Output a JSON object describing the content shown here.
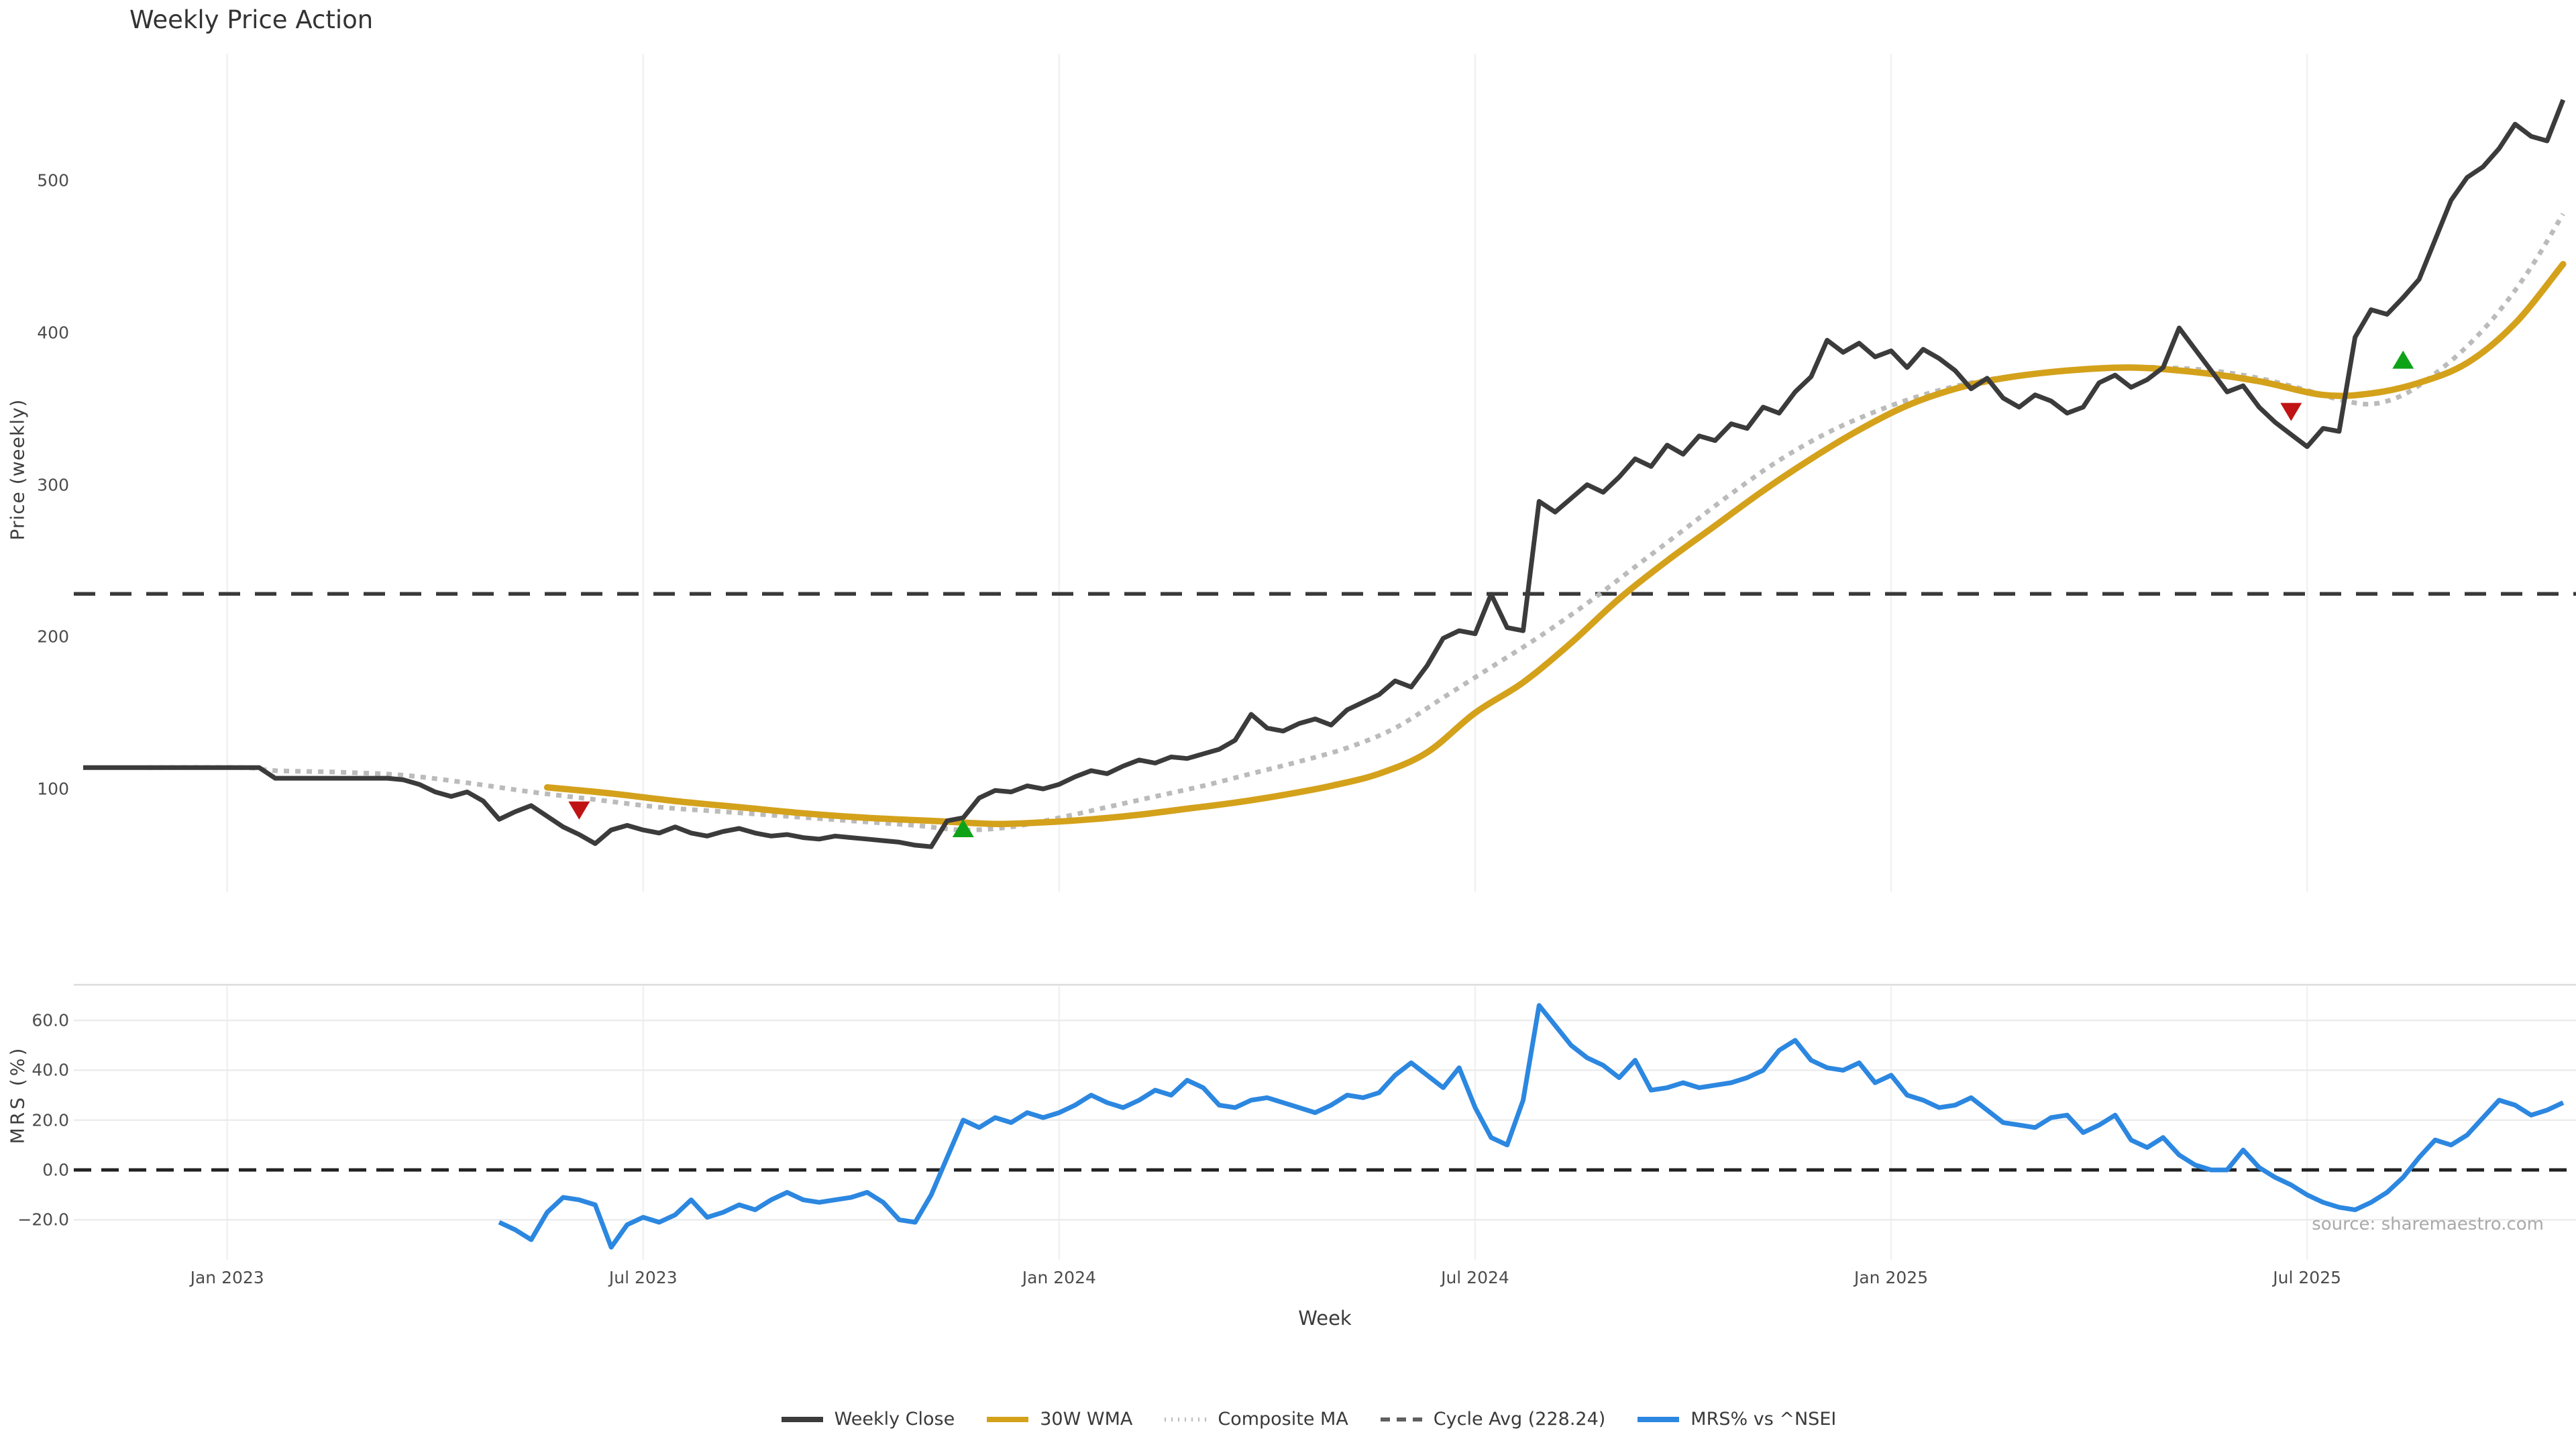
{
  "title": "Weekly Price Action",
  "source_note": "source: sharemaestro.com",
  "axes": {
    "price": {
      "label": "Price (weekly)",
      "ticks": [
        {
          "value": 100,
          "label": "100"
        },
        {
          "value": 200,
          "label": "200"
        },
        {
          "value": 300,
          "label": "300"
        },
        {
          "value": 400,
          "label": "400"
        },
        {
          "value": 500,
          "label": "500"
        }
      ]
    },
    "mrs": {
      "label": "MRS (%)",
      "ticks": [
        {
          "value": -20,
          "label": "−20.0"
        },
        {
          "value": 0,
          "label": "0.0"
        },
        {
          "value": 20,
          "label": "20.0"
        },
        {
          "value": 40,
          "label": "40.0"
        },
        {
          "value": 60,
          "label": "60.0"
        }
      ]
    },
    "x": {
      "label": "Week",
      "ticks": [
        {
          "week": 9,
          "label": "Jan 2023"
        },
        {
          "week": 35,
          "label": "Jul 2023"
        },
        {
          "week": 61,
          "label": "Jan 2024"
        },
        {
          "week": 87,
          "label": "Jul 2024"
        },
        {
          "week": 113,
          "label": "Jan 2025"
        },
        {
          "week": 139,
          "label": "Jul 2025"
        }
      ]
    }
  },
  "legend": [
    {
      "label": "Weekly Close",
      "color": "#3b3b3b",
      "style": "solid"
    },
    {
      "label": "30W WMA",
      "color": "#d4a11b",
      "style": "solid"
    },
    {
      "label": "Composite MA",
      "color": "#bbbbbb",
      "style": "dotted"
    },
    {
      "label": "Cycle Avg (228.24)",
      "color": "#5f5f5f",
      "style": "dashed"
    },
    {
      "label": "MRS% vs ^NSEI",
      "color": "#2c87e0",
      "style": "solid"
    }
  ],
  "chart_data": [
    {
      "type": "line",
      "panel": "price",
      "title": "Weekly Price Action",
      "ylabel": "Price (weekly)",
      "ylim": [
        30,
        585
      ],
      "x_unit": "week_index (week 9 = Jan 2023 tick, 1 step = 1 week)",
      "grid": "vertical date gridlines only",
      "series": [
        {
          "name": "Weekly Close",
          "color": "#3b3b3b",
          "style": "solid",
          "start_week": 0,
          "values": [
            114,
            114,
            114,
            114,
            114,
            114,
            114,
            114,
            114,
            114,
            114,
            114,
            107,
            107,
            107,
            107,
            107,
            107,
            107,
            107,
            106,
            103,
            98,
            95,
            98,
            92,
            80,
            85,
            89,
            82,
            75,
            70,
            64,
            73,
            76,
            73,
            71,
            75,
            71,
            69,
            72,
            74,
            71,
            69,
            70,
            68,
            67,
            69,
            68,
            67,
            66,
            65,
            63,
            62,
            79,
            81,
            94,
            99,
            98,
            102,
            100,
            103,
            108,
            112,
            110,
            115,
            119,
            117,
            121,
            120,
            123,
            126,
            132,
            149,
            140,
            138,
            143,
            146,
            142,
            152,
            157,
            162,
            171,
            167,
            181,
            199,
            204,
            202,
            228,
            206,
            204,
            289,
            282,
            291,
            300,
            295,
            305,
            317,
            312,
            326,
            320,
            332,
            329,
            340,
            337,
            351,
            347,
            361,
            371,
            395,
            387,
            393,
            384,
            388,
            377,
            389,
            383,
            375,
            363,
            370,
            357,
            351,
            359,
            355,
            347,
            351,
            367,
            372,
            364,
            369,
            377,
            403,
            389,
            375,
            361,
            365,
            351,
            341,
            333,
            325,
            337,
            335,
            397,
            415,
            412,
            423,
            435,
            461,
            487,
            502,
            509,
            521,
            537,
            529,
            526,
            553
          ]
        },
        {
          "name": "30W WMA",
          "color": "#d4a11b",
          "style": "solid",
          "keypoints": [
            [
              29,
              101
            ],
            [
              33,
              97
            ],
            [
              37,
              92
            ],
            [
              41,
              88
            ],
            [
              45,
              84
            ],
            [
              49,
              81
            ],
            [
              53,
              79
            ],
            [
              57,
              77
            ],
            [
              60,
              78
            ],
            [
              63,
              80
            ],
            [
              66,
              83
            ],
            [
              69,
              87
            ],
            [
              72,
              91
            ],
            [
              75,
              96
            ],
            [
              78,
              102
            ],
            [
              81,
              110
            ],
            [
              84,
              124
            ],
            [
              87,
              150
            ],
            [
              90,
              170
            ],
            [
              93,
              196
            ],
            [
              96,
              225
            ],
            [
              99,
              250
            ],
            [
              102,
              273
            ],
            [
              105,
              296
            ],
            [
              108,
              317
            ],
            [
              111,
              336
            ],
            [
              114,
              352
            ],
            [
              117,
              363
            ],
            [
              120,
              370
            ],
            [
              124,
              375
            ],
            [
              128,
              377
            ],
            [
              132,
              374
            ],
            [
              136,
              368
            ],
            [
              140,
              359
            ],
            [
              143,
              360
            ],
            [
              146,
              367
            ],
            [
              149,
              380
            ],
            [
              152,
              406
            ],
            [
              155,
              445
            ]
          ]
        },
        {
          "name": "Composite MA",
          "color": "#bbbbbb",
          "style": "dotted",
          "keypoints": [
            [
              4,
              114
            ],
            [
              10,
              114
            ],
            [
              12,
              112
            ],
            [
              16,
              111
            ],
            [
              20,
              109
            ],
            [
              24,
              104
            ],
            [
              28,
              98
            ],
            [
              32,
              93
            ],
            [
              36,
              88
            ],
            [
              40,
              85
            ],
            [
              44,
              82
            ],
            [
              48,
              79
            ],
            [
              52,
              76
            ],
            [
              55,
              73
            ],
            [
              58,
              75
            ],
            [
              61,
              81
            ],
            [
              64,
              88
            ],
            [
              67,
              95
            ],
            [
              70,
              102
            ],
            [
              73,
              110
            ],
            [
              76,
              118
            ],
            [
              79,
              127
            ],
            [
              82,
              140
            ],
            [
              85,
              160
            ],
            [
              88,
              180
            ],
            [
              91,
              200
            ],
            [
              94,
              222
            ],
            [
              97,
              246
            ],
            [
              100,
              270
            ],
            [
              103,
              294
            ],
            [
              106,
              316
            ],
            [
              109,
              334
            ],
            [
              112,
              348
            ],
            [
              115,
              359
            ],
            [
              118,
              367
            ],
            [
              121,
              372
            ],
            [
              124,
              375
            ],
            [
              127,
              377
            ],
            [
              130,
              377
            ],
            [
              133,
              375
            ],
            [
              136,
              370
            ],
            [
              139,
              362
            ],
            [
              141,
              356
            ],
            [
              143,
              353
            ],
            [
              145,
              359
            ],
            [
              147,
              373
            ],
            [
              149,
              391
            ],
            [
              151,
              414
            ],
            [
              153,
              443
            ],
            [
              155,
              478
            ]
          ]
        },
        {
          "name": "Cycle Avg",
          "color": "#3a3a3a",
          "style": "dashed",
          "value": 228.24
        }
      ],
      "markers": {
        "sell": {
          "shape": "triangle-down",
          "color": "#c01414",
          "points": [
            [
              31,
              86
            ],
            [
              138,
              348
            ]
          ]
        },
        "buy": {
          "shape": "triangle-up",
          "color": "#0ea317",
          "points": [
            [
              55,
              74
            ],
            [
              145,
              382
            ]
          ]
        }
      }
    },
    {
      "type": "line",
      "panel": "mrs",
      "ylabel": "MRS (%)",
      "xlabel": "Week",
      "ylim": [
        -36,
        74
      ],
      "x_unit": "week_index (same axis as price panel)",
      "grid": "horizontal gridlines at ticks, dashed zero line",
      "series": [
        {
          "name": "MRS% vs ^NSEI",
          "color": "#2c87e0",
          "style": "solid",
          "start_week": 26,
          "values": [
            -21,
            -24,
            -28,
            -17,
            -11,
            -12,
            -14,
            -31,
            -22,
            -19,
            -21,
            -18,
            -12,
            -19,
            -17,
            -14,
            -16,
            -12,
            -9,
            -12,
            -13,
            -12,
            -11,
            -9,
            -13,
            -20,
            -21,
            -10,
            5,
            20,
            17,
            21,
            19,
            23,
            21,
            23,
            26,
            30,
            27,
            25,
            28,
            32,
            30,
            36,
            33,
            26,
            25,
            28,
            29,
            27,
            25,
            23,
            26,
            30,
            29,
            31,
            38,
            43,
            38,
            33,
            41,
            25,
            13,
            10,
            28,
            66,
            58,
            50,
            45,
            42,
            37,
            44,
            32,
            33,
            35,
            33,
            34,
            35,
            37,
            40,
            48,
            52,
            44,
            41,
            40,
            43,
            35,
            38,
            30,
            28,
            25,
            26,
            29,
            24,
            19,
            18,
            17,
            21,
            22,
            15,
            18,
            22,
            12,
            9,
            13,
            6,
            2,
            0,
            0,
            8,
            1,
            -3,
            -6,
            -10,
            -13,
            -15,
            -16,
            -13,
            -9,
            -3,
            5,
            12,
            10,
            14,
            21,
            28,
            26,
            22,
            24,
            27
          ]
        },
        {
          "name": "Zero Line",
          "color": "#222222",
          "style": "dashed",
          "value": 0.0
        }
      ]
    }
  ]
}
